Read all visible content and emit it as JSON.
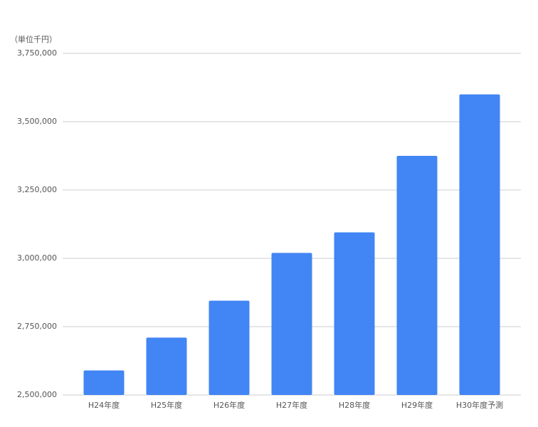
{
  "chart_data": {
    "type": "bar",
    "unit_label": "（単位千円）",
    "categories": [
      "H24年度",
      "H25年度",
      "H26年度",
      "H27年度",
      "H28年度",
      "H29年度",
      "H30年度予測"
    ],
    "values": [
      2590000,
      2710000,
      2845000,
      3020000,
      3095000,
      3375000,
      3600000
    ],
    "color": "#4285f4",
    "ylim": [
      2500000,
      3750000
    ],
    "yticks": [
      {
        "value": 2500000,
        "label": "2,500,000"
      },
      {
        "value": 2750000,
        "label": "2,750,000"
      },
      {
        "value": 3000000,
        "label": "3,000,000"
      },
      {
        "value": 3250000,
        "label": "3,250,000"
      },
      {
        "value": 3500000,
        "label": "3,500,000"
      },
      {
        "value": 3750000,
        "label": "3,750,000"
      }
    ],
    "grid": true
  }
}
